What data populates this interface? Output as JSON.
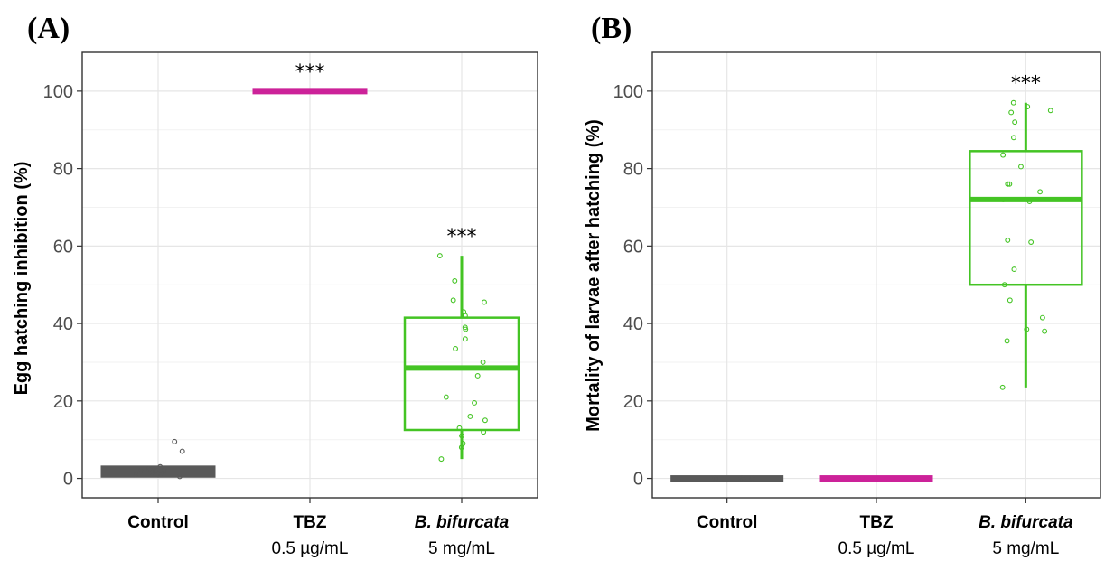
{
  "colors": {
    "control": "#595959",
    "tbz": "#cc2299",
    "bifurcata": "#44c424",
    "grid_major": "#e6e6e6",
    "grid_minor": "#f2f2f2",
    "frame": "#333333"
  },
  "chart_data": [
    {
      "type": "box",
      "panel_label": "(A)",
      "ylabel": "Egg hatching inhibition (%)",
      "ylim": [
        -5,
        110
      ],
      "yticks": [
        0,
        20,
        40,
        60,
        80,
        100
      ],
      "grid": true,
      "categories": [
        {
          "label": "Control",
          "sub": "",
          "italic": false,
          "color_key": "control",
          "box": {
            "min": 1,
            "q1": 1,
            "median": 2,
            "q3": 2.5,
            "max": 2.5
          },
          "points": [
            0.5,
            1,
            1,
            1.5,
            2,
            2,
            2,
            2.5,
            3,
            7,
            9.5
          ],
          "significance": ""
        },
        {
          "label": "TBZ",
          "sub": "0.5 µg/mL",
          "italic": false,
          "color_key": "tbz",
          "box": {
            "min": 100,
            "q1": 100,
            "median": 100,
            "q3": 100,
            "max": 100
          },
          "points": [
            100,
            100,
            100,
            100,
            100
          ],
          "significance": "***"
        },
        {
          "label": "B. bifurcata",
          "sub": "5 mg/mL",
          "italic": true,
          "color_key": "bifurcata",
          "box": {
            "min": 5,
            "q1": 12.5,
            "median": 28.5,
            "q3": 41.5,
            "max": 57.5
          },
          "points": [
            57.5,
            51,
            46,
            45.5,
            43,
            42,
            39,
            38.5,
            36,
            33.5,
            30,
            26.5,
            21,
            19.5,
            16,
            15,
            13,
            12,
            11,
            9,
            8,
            5
          ],
          "significance": "***"
        }
      ]
    },
    {
      "type": "box",
      "panel_label": "(B)",
      "ylabel": "Mortality of larvae after hatching (%)",
      "ylim": [
        -5,
        110
      ],
      "yticks": [
        0,
        20,
        40,
        60,
        80,
        100
      ],
      "grid": true,
      "categories": [
        {
          "label": "Control",
          "sub": "",
          "italic": false,
          "color_key": "control",
          "box": {
            "min": 0,
            "q1": 0,
            "median": 0,
            "q3": 0,
            "max": 0
          },
          "points": [
            0,
            0,
            0,
            0,
            0
          ],
          "significance": ""
        },
        {
          "label": "TBZ",
          "sub": "0.5 µg/mL",
          "italic": false,
          "color_key": "tbz",
          "box": {
            "min": 0,
            "q1": 0,
            "median": 0,
            "q3": 0,
            "max": 0
          },
          "points": [
            0,
            0,
            0,
            0,
            0
          ],
          "significance": ""
        },
        {
          "label": "B. bifurcata",
          "sub": "5 mg/mL",
          "italic": true,
          "color_key": "bifurcata",
          "box": {
            "min": 23.5,
            "q1": 50,
            "median": 72,
            "q3": 84.5,
            "max": 97
          },
          "points": [
            97,
            96,
            95,
            94.5,
            92,
            88,
            83.5,
            80.5,
            76,
            76,
            74,
            72,
            71.5,
            61.5,
            61,
            54,
            50,
            46,
            41.5,
            38.5,
            38,
            35.5,
            23.5
          ],
          "significance": "***"
        }
      ]
    }
  ]
}
